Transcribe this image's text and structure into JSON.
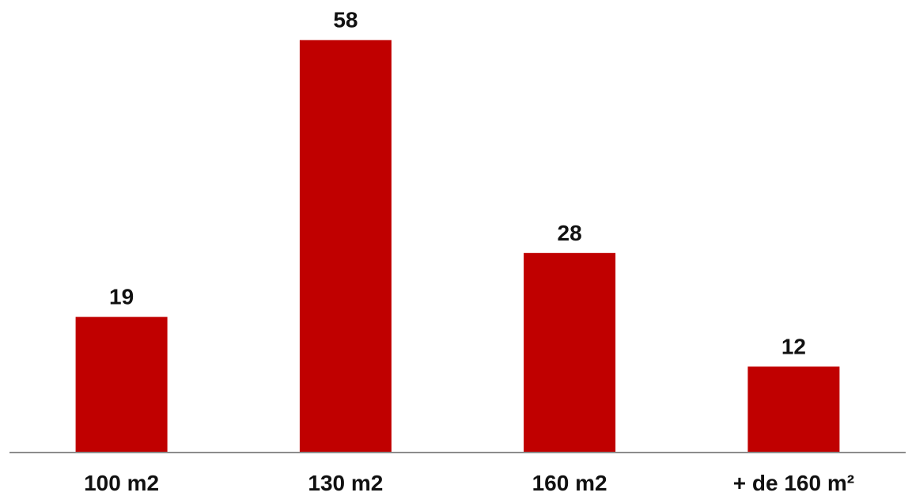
{
  "chart_data": {
    "type": "bar",
    "title": "",
    "xlabel": "",
    "ylabel": "",
    "categories": [
      "100 m2",
      "130 m2",
      "160 m2",
      "+ de 160 m²"
    ],
    "values": [
      19,
      58,
      28,
      12
    ],
    "ylim": [
      0,
      63
    ],
    "grid": false,
    "legend": "none",
    "data_labels": true,
    "bar_color": "#C00000",
    "axis_color": "#8C8C8C"
  }
}
